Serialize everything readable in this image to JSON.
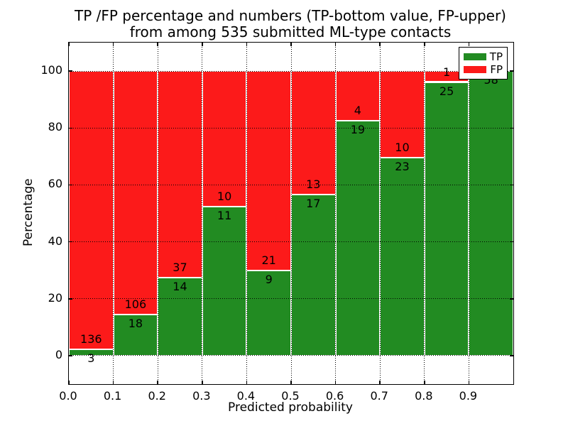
{
  "chart_data": {
    "type": "bar",
    "stacked": true,
    "unit": "percent_of_bin",
    "title": "TP /FP percentage and numbers (TP-bottom value, FP-upper)\nfrom among 535 submitted ML-type contacts",
    "title_lines": [
      "TP /FP percentage and numbers (TP-bottom value, FP-upper)",
      "from among 535 submitted ML-type contacts"
    ],
    "xlabel": "Predicted probability",
    "ylabel": "Percentage",
    "total_contacts": 535,
    "xlim": [
      0.0,
      1.0
    ],
    "ylim": [
      -10,
      110
    ],
    "bin_width": 0.1,
    "x_tick_labels": [
      "0.0",
      "0.1",
      "0.2",
      "0.3",
      "0.4",
      "0.5",
      "0.6",
      "0.7",
      "0.8",
      "0.9"
    ],
    "y_tick_labels": [
      "0",
      "20",
      "40",
      "60",
      "80",
      "100"
    ],
    "y_tick_values": [
      0,
      20,
      40,
      60,
      80,
      100
    ],
    "categories": [
      "0.0-0.1",
      "0.1-0.2",
      "0.2-0.3",
      "0.3-0.4",
      "0.4-0.5",
      "0.5-0.6",
      "0.6-0.7",
      "0.7-0.8",
      "0.8-0.9",
      "0.9-1.0"
    ],
    "series": [
      {
        "name": "TP",
        "color": "#228b22",
        "values": [
          3,
          18,
          14,
          11,
          9,
          17,
          19,
          23,
          25,
          58
        ]
      },
      {
        "name": "FP",
        "color": "#fc1a1a",
        "values": [
          136,
          106,
          37,
          10,
          21,
          13,
          4,
          10,
          1,
          0
        ]
      }
    ],
    "tp_percent_of_bin": [
      2.2,
      14.5,
      27.5,
      52.4,
      30.0,
      56.7,
      82.6,
      69.7,
      96.2,
      100.0
    ],
    "grid": {
      "style": "dotted",
      "color": "#000000",
      "horizontal_at": [
        0,
        20,
        40,
        60,
        80,
        100
      ],
      "vertical_at": [
        0.1,
        0.2,
        0.3,
        0.4,
        0.5,
        0.6,
        0.7,
        0.8,
        0.9
      ]
    },
    "legend": {
      "position": "upper-right",
      "entries": [
        {
          "label": "TP",
          "color": "#228b22"
        },
        {
          "label": "FP",
          "color": "#fc1a1a"
        }
      ]
    }
  },
  "colors": {
    "tp_green": "#228b22",
    "fp_red": "#fc1a1a",
    "bar_edge": "#ffffff",
    "spine": "#000000",
    "background": "#ffffff"
  }
}
